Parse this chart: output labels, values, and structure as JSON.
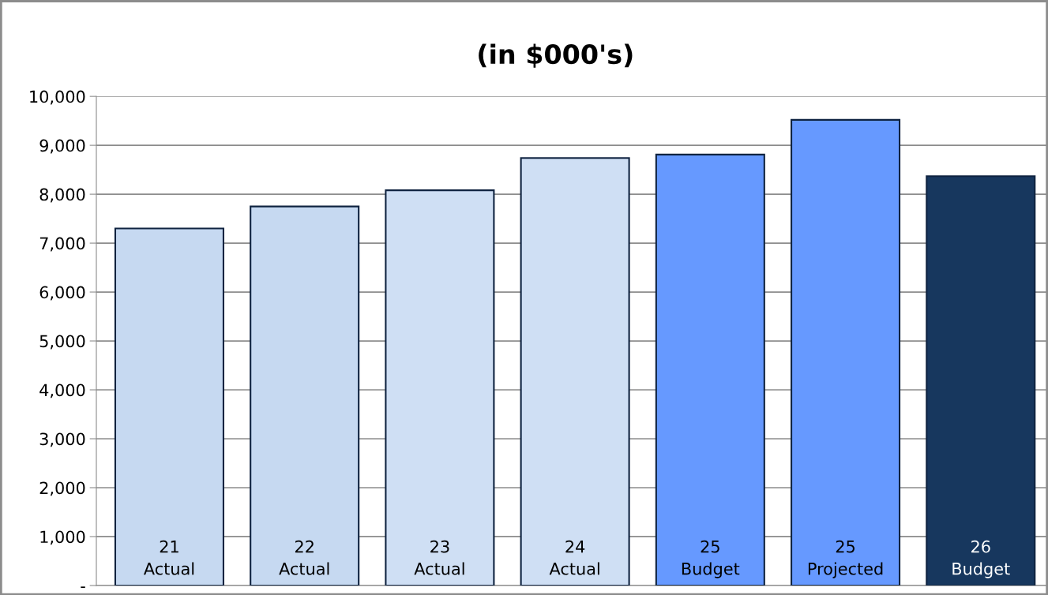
{
  "chart_data": {
    "type": "bar",
    "title": "(in $000's)",
    "categories": [
      "21\nActual",
      "22\nActual",
      "23\nActual",
      "24\nActual",
      "25\nBudget",
      "25\nProjected",
      "26\nBudget"
    ],
    "values": [
      7300,
      7750,
      8080,
      8740,
      8810,
      9520,
      8370
    ],
    "colors": [
      "#c6d9f1",
      "#c6d9f1",
      "#cfdff4",
      "#cfdff4",
      "#6699ff",
      "#6699ff",
      "#17375e"
    ],
    "ylim": [
      0,
      10000
    ],
    "yticks": [
      {
        "value": 0,
        "label": "-"
      },
      {
        "value": 1000,
        "label": "1,000"
      },
      {
        "value": 2000,
        "label": "2,000"
      },
      {
        "value": 3000,
        "label": "3,000"
      },
      {
        "value": 4000,
        "label": "4,000"
      },
      {
        "value": 5000,
        "label": "5,000"
      },
      {
        "value": 6000,
        "label": "6,000"
      },
      {
        "value": 7000,
        "label": "7,000"
      },
      {
        "value": 8000,
        "label": "8,000"
      },
      {
        "value": 9000,
        "label": "9,000"
      },
      {
        "value": 10000,
        "label": "10,000"
      }
    ],
    "grid": "y"
  }
}
